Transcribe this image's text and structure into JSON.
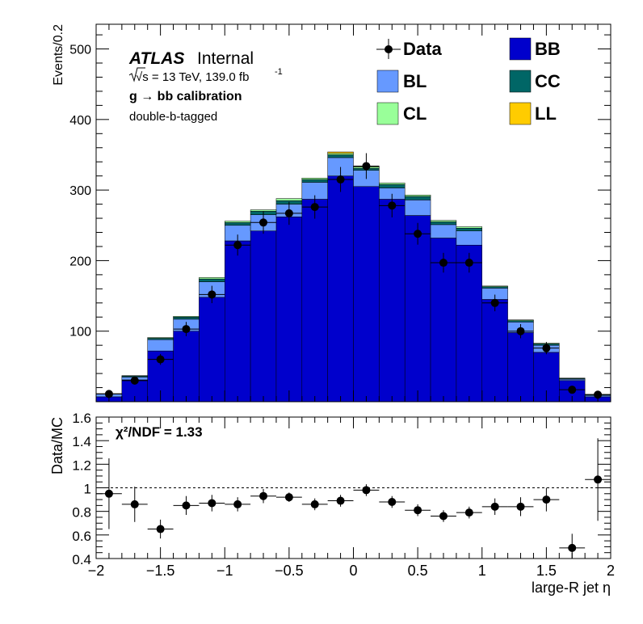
{
  "chart_data": [
    {
      "type": "bar",
      "stacked": true,
      "ylabel": "Events/0.2",
      "ylim": [
        0,
        535
      ],
      "yticks": [
        100,
        200,
        300,
        400,
        500
      ],
      "xlim": [
        -2,
        2
      ],
      "bin_edges": [
        -2.0,
        -1.8,
        -1.6,
        -1.4,
        -1.2,
        -1.0,
        -0.8,
        -0.6,
        -0.4,
        -0.2,
        0.0,
        0.2,
        0.4,
        0.6,
        0.8,
        1.0,
        1.2,
        1.4,
        1.6,
        1.8,
        2.0
      ],
      "series": [
        {
          "name": "BB",
          "color": "#0000cc",
          "values": [
            7,
            31,
            72,
            100,
            148,
            228,
            242,
            262,
            287,
            320,
            305,
            287,
            264,
            232,
            222,
            145,
            98,
            70,
            30,
            7
          ]
        },
        {
          "name": "BL",
          "color": "#6699ff",
          "values": [
            4,
            4,
            16,
            17,
            22,
            22,
            23,
            18,
            24,
            26,
            23,
            16,
            22,
            19,
            20,
            16,
            15,
            10,
            2,
            2
          ]
        },
        {
          "name": "CC",
          "color": "#006666",
          "values": [
            0.5,
            1.5,
            2,
            3,
            4,
            4,
            5,
            5,
            4,
            4,
            3,
            5,
            5,
            4,
            4,
            2,
            2,
            2,
            1,
            1
          ]
        },
        {
          "name": "CL",
          "color": "#99ff99",
          "values": [
            0,
            0.5,
            1,
            1,
            2,
            2,
            2,
            3,
            2,
            2,
            2,
            2,
            2,
            2,
            2,
            1,
            1,
            1,
            0.5,
            0.5
          ]
        },
        {
          "name": "LL",
          "color": "#ffcc00",
          "values": [
            0,
            0,
            0,
            0,
            0,
            0,
            0,
            0,
            0,
            2,
            1,
            0,
            0,
            0,
            0,
            0,
            0,
            0,
            0,
            0
          ]
        }
      ],
      "data": {
        "name": "Data",
        "x": [
          -1.9,
          -1.7,
          -1.5,
          -1.3,
          -1.1,
          -0.9,
          -0.7,
          -0.5,
          -0.3,
          -0.1,
          0.1,
          0.3,
          0.5,
          0.7,
          0.9,
          1.1,
          1.3,
          1.5,
          1.7,
          1.9
        ],
        "y": [
          11,
          30,
          60,
          103,
          152,
          222,
          254,
          267,
          276,
          315,
          334,
          278,
          238,
          197,
          197,
          140,
          100,
          76,
          17,
          10
        ],
        "yerr": [
          3.3,
          5.5,
          7.7,
          10.1,
          12.3,
          14.9,
          15.9,
          16.3,
          16.6,
          17.7,
          18.3,
          16.7,
          15.4,
          14.0,
          14.0,
          11.8,
          10.0,
          8.7,
          4.1,
          3.2
        ]
      },
      "legend": {
        "position": "top-right",
        "entries": [
          "Data",
          "BB",
          "BL",
          "CC",
          "CL",
          "LL"
        ]
      },
      "annotations": {
        "atlas": "ATLAS",
        "atlas_status": "Internal",
        "energy": "√s = 13 TeV, 139.0 fb",
        "energy_exp": "-1",
        "selection": "g  → bb calibration",
        "tagging": "double-b-tagged"
      }
    },
    {
      "type": "scatter",
      "ylabel": "Data/MC",
      "xlabel": "large-R jet η",
      "ylim": [
        0.4,
        1.6
      ],
      "yticks": [
        0.4,
        0.6,
        0.8,
        1.0,
        1.2,
        1.4,
        1.6
      ],
      "ytick_labels": [
        "0.4",
        "0.6",
        "0.8",
        "1",
        "1.2",
        "1.4",
        "1.6"
      ],
      "xlim": [
        -2,
        2
      ],
      "xticks": [
        -2,
        -1.5,
        -1,
        -0.5,
        0,
        0.5,
        1,
        1.5,
        2
      ],
      "xtick_labels": [
        "−2",
        "−1.5",
        "−1",
        "−0.5",
        "0",
        "0.5",
        "1",
        "1.5",
        "2"
      ],
      "reference_line": 1,
      "x": [
        -1.9,
        -1.7,
        -1.5,
        -1.3,
        -1.1,
        -0.9,
        -0.7,
        -0.5,
        -0.3,
        -0.1,
        0.1,
        0.3,
        0.5,
        0.7,
        0.9,
        1.1,
        1.3,
        1.5,
        1.7,
        1.9
      ],
      "y": [
        0.95,
        0.86,
        0.65,
        0.85,
        0.87,
        0.86,
        0.93,
        0.92,
        0.86,
        0.89,
        0.98,
        0.88,
        0.81,
        0.76,
        0.79,
        0.84,
        0.84,
        0.9,
        0.49,
        1.07
      ],
      "yerr": [
        0.3,
        0.15,
        0.08,
        0.08,
        0.07,
        0.06,
        0.06,
        0.04,
        0.05,
        0.05,
        0.05,
        0.05,
        0.05,
        0.05,
        0.05,
        0.07,
        0.08,
        0.1,
        0.12,
        0.35
      ],
      "annotation_chi2": "χ²/NDF = 1.33"
    }
  ]
}
